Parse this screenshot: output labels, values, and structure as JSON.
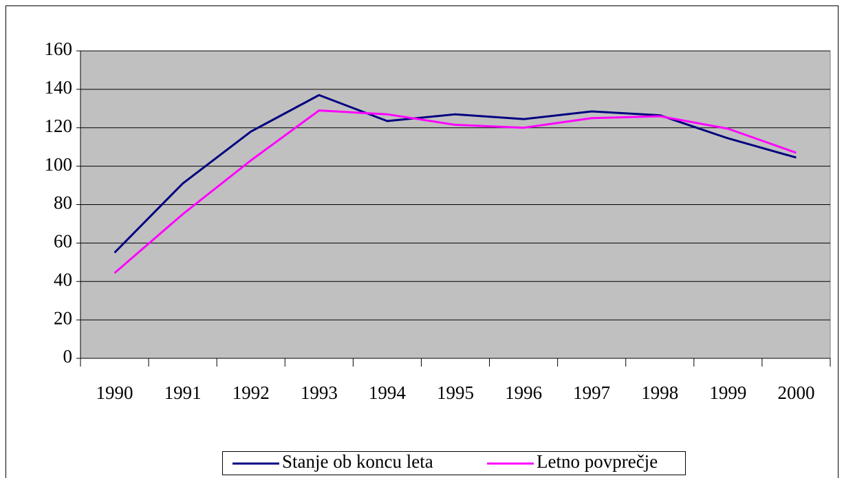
{
  "chart_data": {
    "type": "line",
    "categories": [
      "1990",
      "1991",
      "1992",
      "1993",
      "1994",
      "1995",
      "1996",
      "1997",
      "1998",
      "1999",
      "2000"
    ],
    "series": [
      {
        "name": "Stanje ob koncu leta",
        "color": "#000080",
        "values": [
          55,
          91,
          118,
          137,
          123.5,
          127,
          124.5,
          128.5,
          126.5,
          114.5,
          104.5
        ]
      },
      {
        "name": "Letno povprečje",
        "color": "#ff00ff",
        "values": [
          44.4,
          75,
          103,
          129,
          127,
          121.5,
          120,
          125,
          126,
          119.5,
          107
        ]
      }
    ],
    "ylim": [
      0,
      160
    ],
    "yticks": [
      0,
      20,
      40,
      60,
      80,
      100,
      120,
      140,
      160
    ],
    "grid": true,
    "plot_background": "#c0c0c0",
    "legend": "bottom"
  }
}
